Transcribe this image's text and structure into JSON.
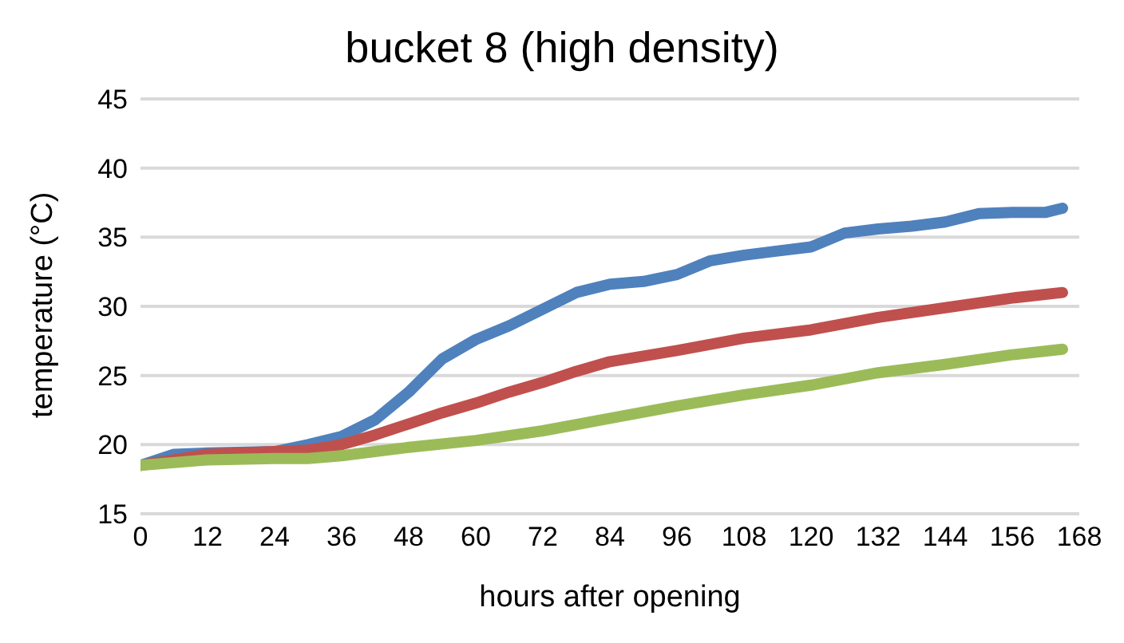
{
  "chart_data": {
    "type": "line",
    "title": "bucket 8 (high density)",
    "xlabel": "hours after opening",
    "ylabel": "temperature (°C)",
    "xlim": [
      0,
      168
    ],
    "xticks": [
      0,
      12,
      24,
      36,
      48,
      60,
      72,
      84,
      96,
      108,
      120,
      132,
      144,
      156,
      168
    ],
    "ylim": [
      15,
      45
    ],
    "yticks": [
      15,
      20,
      25,
      30,
      35,
      40,
      45
    ],
    "grid": "y",
    "legend": false,
    "marker": "none",
    "line_style": "solid",
    "series": [
      {
        "color": "#4f81bd",
        "x": [
          0,
          6,
          12,
          24,
          30,
          36,
          42,
          48,
          54,
          60,
          66,
          72,
          78,
          84,
          90,
          96,
          102,
          108,
          114,
          120,
          126,
          132,
          138,
          144,
          150,
          156,
          162,
          165
        ],
        "values": [
          18.5,
          19.3,
          19.4,
          19.5,
          20,
          20.6,
          21.8,
          23.8,
          26.2,
          27.6,
          28.6,
          29.8,
          31,
          31.6,
          31.8,
          32.3,
          33.3,
          33.7,
          34,
          34.3,
          35.3,
          35.6,
          35.8,
          36.1,
          36.7,
          36.8,
          36.8,
          37.1
        ]
      },
      {
        "color": "#c0504d",
        "x": [
          0,
          12,
          24,
          30,
          36,
          42,
          48,
          54,
          60,
          66,
          72,
          78,
          84,
          96,
          108,
          120,
          132,
          144,
          156,
          165
        ],
        "values": [
          18.5,
          19.3,
          19.5,
          19.6,
          20,
          20.7,
          21.5,
          22.3,
          23,
          23.8,
          24.5,
          25.3,
          26,
          26.8,
          27.7,
          28.3,
          29.2,
          29.9,
          30.6,
          31
        ]
      },
      {
        "color": "#9bbb59",
        "x": [
          0,
          12,
          24,
          30,
          36,
          48,
          60,
          72,
          84,
          96,
          108,
          120,
          132,
          144,
          156,
          165
        ],
        "values": [
          18.5,
          18.9,
          19,
          19,
          19.2,
          19.8,
          20.3,
          21,
          21.9,
          22.8,
          23.6,
          24.3,
          25.2,
          25.8,
          26.5,
          26.9
        ]
      }
    ]
  }
}
